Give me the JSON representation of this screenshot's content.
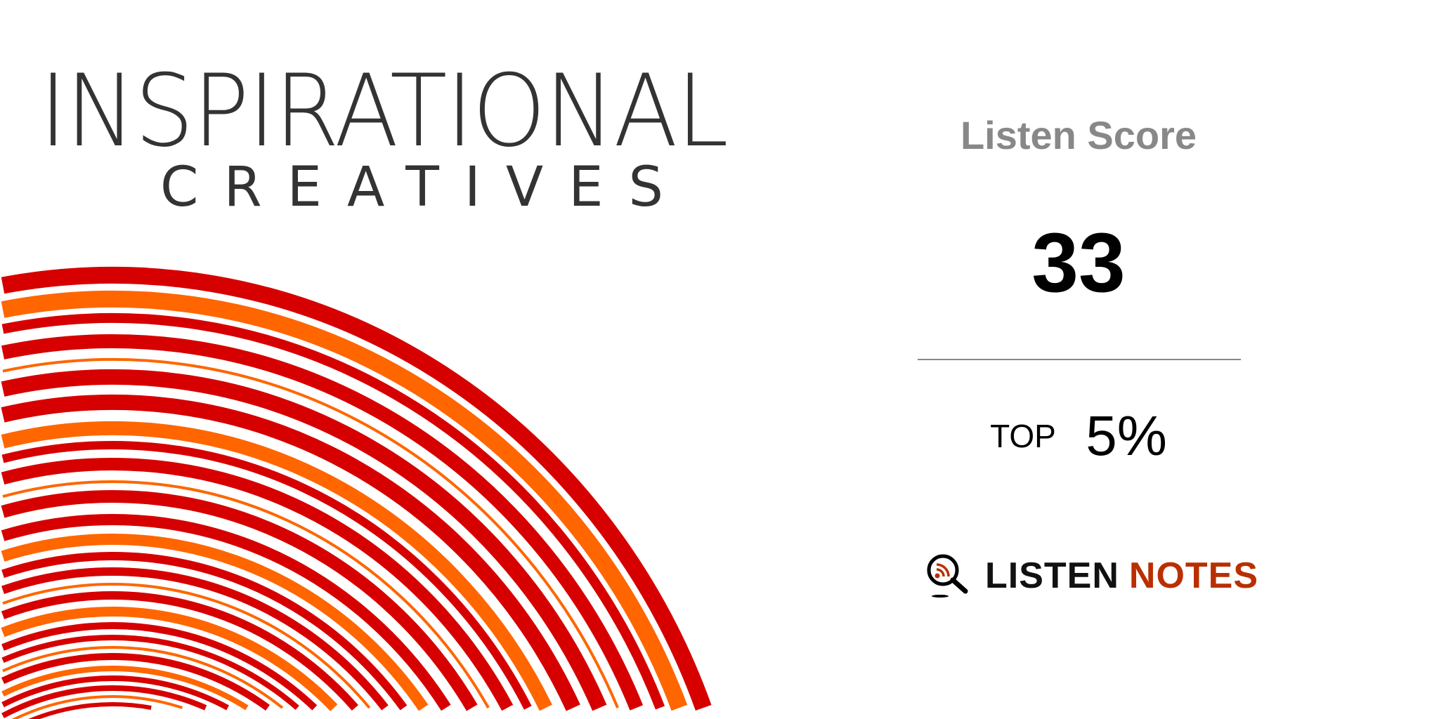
{
  "cover": {
    "title_line1": "INSPIRATIONAL",
    "title_line2": "CREATIVES",
    "colors": {
      "red": "#d60000",
      "orange": "#ff6600",
      "text": "#333333"
    }
  },
  "listen_score": {
    "label": "Listen Score",
    "score": "33",
    "top_label": "TOP",
    "top_percent": "5%"
  },
  "brand": {
    "icon": "magnifier-rss-icon",
    "name_part1": "LISTEN",
    "name_part2": "NOTES",
    "accent": "#b92f00"
  }
}
